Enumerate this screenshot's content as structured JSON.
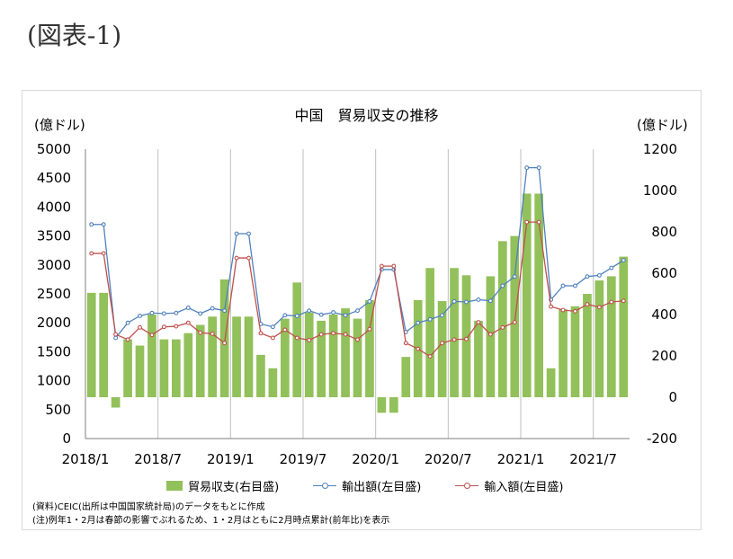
{
  "figure_label": "(図表-1)",
  "units": {
    "left": "(億ドル)",
    "right": "(億ドル)"
  },
  "legend": {
    "balance": "貿易収支(右目盛)",
    "exports": "輸出額(左目盛)",
    "imports": "輸入額(左目盛)"
  },
  "notes": [
    "(資料)CEIC(出所は中国国家統計局)のデータをもとに作成",
    "(注)例年1・2月は春節の影響でぶれるため、1・2月はともに2月時点累計(前年比)を表示"
  ],
  "colors": {
    "balance": "#92c05a",
    "exports": "#4f81bd",
    "imports": "#c0504d",
    "grid": "#bfbfbf"
  },
  "chart_data": {
    "type": "bar+line",
    "title": "中国　貿易収支の推移",
    "categories": [
      "2018/1",
      "2018/2",
      "2018/3",
      "2018/4",
      "2018/5",
      "2018/6",
      "2018/7",
      "2018/8",
      "2018/9",
      "2018/10",
      "2018/11",
      "2018/12",
      "2019/1",
      "2019/2",
      "2019/3",
      "2019/4",
      "2019/5",
      "2019/6",
      "2019/7",
      "2019/8",
      "2019/9",
      "2019/10",
      "2019/11",
      "2019/12",
      "2020/1",
      "2020/2",
      "2020/3",
      "2020/4",
      "2020/5",
      "2020/6",
      "2020/7",
      "2020/8",
      "2020/9",
      "2020/10",
      "2020/11",
      "2020/12",
      "2021/1",
      "2021/2",
      "2021/3",
      "2021/4",
      "2021/5",
      "2021/6",
      "2021/7",
      "2021/8",
      "2021/9"
    ],
    "x_tick_labels": [
      "2018/1",
      "2018/7",
      "2019/1",
      "2019/7",
      "2020/1",
      "2020/7",
      "2021/1",
      "2021/7"
    ],
    "left_axis": {
      "min": 0,
      "max": 5000,
      "step": 500
    },
    "right_axis": {
      "min": -200,
      "max": 1200,
      "step": 200
    },
    "series": [
      {
        "name": "貿易収支(右目盛)",
        "axis": "right",
        "kind": "bar",
        "values": [
          505,
          505,
          -50,
          280,
          250,
          400,
          280,
          280,
          310,
          350,
          390,
          570,
          390,
          390,
          205,
          140,
          380,
          555,
          410,
          370,
          400,
          430,
          380,
          470,
          -75,
          -75,
          195,
          470,
          625,
          465,
          625,
          590,
          370,
          585,
          755,
          780,
          985,
          985,
          140,
          425,
          440,
          500,
          565,
          585,
          680
        ]
      },
      {
        "name": "輸出額(左目盛)",
        "axis": "left",
        "kind": "line",
        "values": [
          3700,
          3700,
          1740,
          2000,
          2120,
          2170,
          2160,
          2170,
          2260,
          2160,
          2250,
          2210,
          3540,
          3540,
          1980,
          1930,
          2130,
          2120,
          2210,
          2140,
          2180,
          2130,
          2210,
          2370,
          2920,
          2920,
          1840,
          2000,
          2060,
          2130,
          2370,
          2360,
          2400,
          2380,
          2640,
          2800,
          4680,
          4680,
          2400,
          2640,
          2640,
          2800,
          2820,
          2950,
          3080
        ]
      },
      {
        "name": "輸入額(左目盛)",
        "axis": "left",
        "kind": "line",
        "values": [
          3200,
          3200,
          1800,
          1710,
          1920,
          1790,
          1930,
          1940,
          2000,
          1830,
          1810,
          1650,
          3120,
          3120,
          1820,
          1740,
          1880,
          1740,
          1700,
          1800,
          1820,
          1800,
          1710,
          1890,
          2980,
          2980,
          1650,
          1550,
          1420,
          1650,
          1710,
          1720,
          2010,
          1800,
          1920,
          2010,
          3740,
          3740,
          2280,
          2220,
          2200,
          2320,
          2270,
          2360,
          2380
        ]
      }
    ]
  }
}
